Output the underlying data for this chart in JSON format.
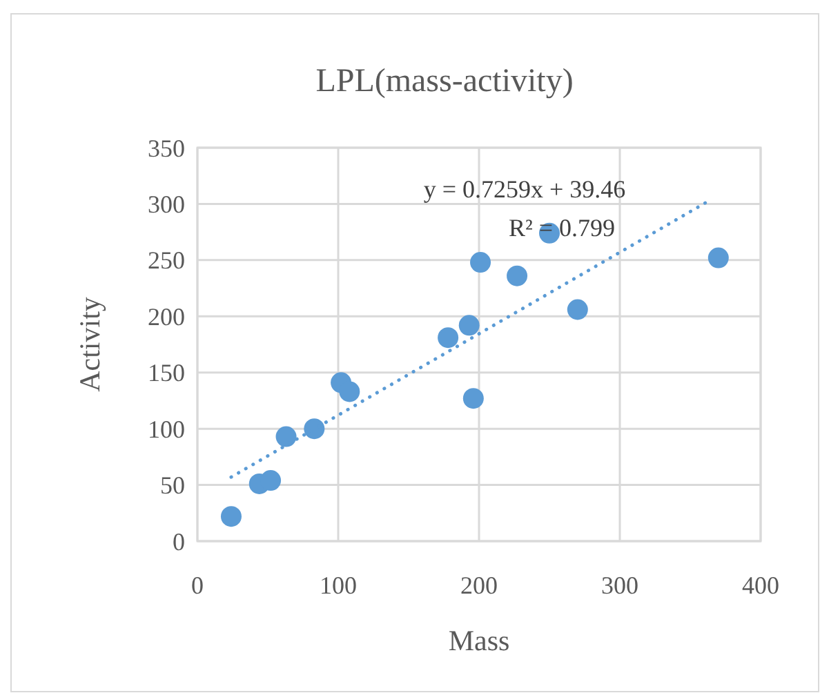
{
  "chart_data": {
    "type": "scatter",
    "title": "LPL(mass-activity)",
    "xlabel": "Mass",
    "ylabel": "Activity",
    "xlim": [
      0,
      400
    ],
    "xticks": [
      0,
      100,
      200,
      300,
      400
    ],
    "ylim": [
      0,
      350
    ],
    "yticks": [
      0,
      50,
      100,
      150,
      200,
      250,
      300,
      350
    ],
    "grid": true,
    "series": [
      {
        "color": "#5b9bd5",
        "marker": "circle",
        "x": [
          24,
          44,
          52,
          63,
          83,
          102,
          108,
          178,
          193,
          196,
          201,
          227,
          250,
          270,
          370
        ],
        "values": [
          22,
          51,
          54,
          93,
          100,
          141,
          133,
          181,
          192,
          127,
          248,
          236,
          274,
          206,
          252
        ]
      },
      {
        "type": "line",
        "color": "#5b9bd5",
        "line_style": "dotted",
        "marker": "none",
        "x": [
          24,
          365
        ],
        "values": [
          57,
          304
        ]
      }
    ],
    "annotations": [
      "y = 0.7259x + 39.46",
      "R² = 0.799"
    ]
  }
}
